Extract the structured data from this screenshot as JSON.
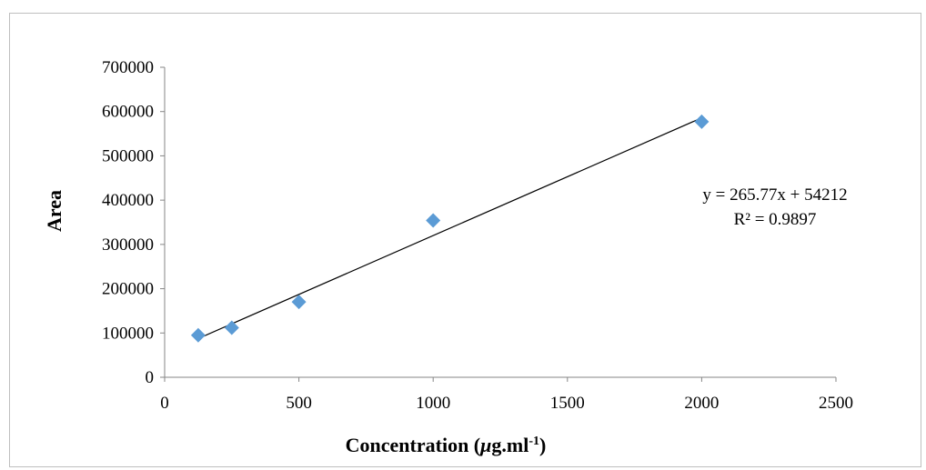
{
  "chart_data": {
    "type": "scatter",
    "title": "",
    "xlabel": "Concentration (μg.ml-1)",
    "xlabel_parts": {
      "base": "Concentration (",
      "mu": "μ",
      "unit": "g.ml",
      "sup": "-1",
      "close": ")"
    },
    "ylabel": "Area",
    "xlim": [
      0,
      2500
    ],
    "ylim": [
      0,
      700000
    ],
    "x_ticks": [
      0,
      500,
      1000,
      1500,
      2000,
      2500
    ],
    "y_ticks": [
      0,
      100000,
      200000,
      300000,
      400000,
      500000,
      600000,
      700000
    ],
    "grid": false,
    "legend": "none",
    "marker_color": "#5b9bd5",
    "series": [
      {
        "points": [
          {
            "x": 125,
            "y": 95000
          },
          {
            "x": 250,
            "y": 112000
          },
          {
            "x": 500,
            "y": 170000
          },
          {
            "x": 1000,
            "y": 354000
          },
          {
            "x": 2000,
            "y": 577000
          }
        ],
        "trendline": {
          "type": "linear",
          "slope": 265.77,
          "intercept": 54212,
          "x_range": [
            125,
            2000
          ],
          "color": "#000000"
        }
      }
    ],
    "annotations": {
      "equation": "y = 265.77x + 54212",
      "r_squared": "R² = 0.9897"
    }
  }
}
